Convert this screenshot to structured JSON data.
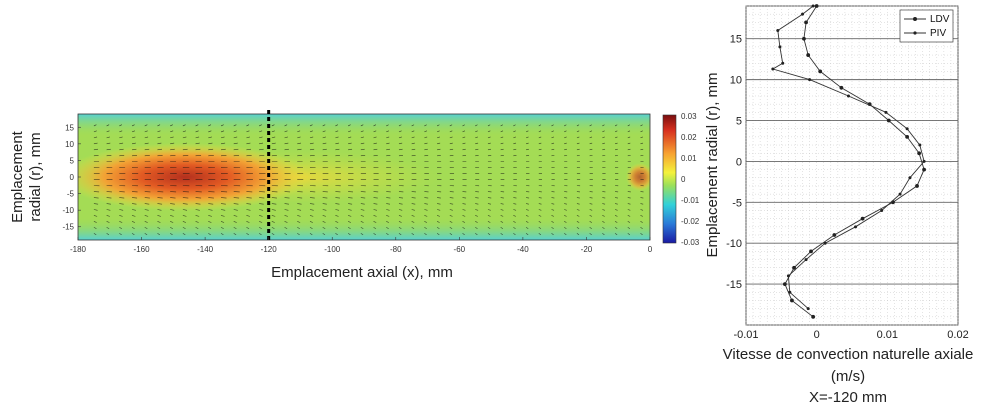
{
  "chart_data": [
    {
      "type": "heatmap",
      "title": "",
      "xlabel": "Emplacement axial (x), mm",
      "ylabel_lines": [
        "Emplacement",
        "radial (r), mm"
      ],
      "xlim": [
        -180,
        0
      ],
      "ylim": [
        -19,
        19
      ],
      "x_ticks": [
        -180,
        -160,
        -140,
        -120,
        -100,
        -80,
        -60,
        -40,
        -20,
        0
      ],
      "y_ticks": [
        15,
        10,
        5,
        0,
        -5,
        -10,
        -15
      ],
      "colorbar": {
        "range": [
          -0.03,
          0.03
        ],
        "ticks": [
          "0.03",
          "0.02",
          "0.01",
          "0",
          "-0.01",
          "-0.02",
          "-0.03"
        ]
      },
      "marker_line_x": -120,
      "colors": {
        "hot": "#b4301e",
        "warm": "#f2a335",
        "mid": "#9fdc52",
        "cool": "#4fcfe0",
        "cold": "#1c2ec8"
      }
    },
    {
      "type": "line",
      "xlabel": "Vitesse de convection naturelle axiale",
      "xlabel_unit": "(m/s)",
      "caption": "X=-120 mm",
      "ylabel": "Emplacement radial (r), mm",
      "xlim": [
        -0.01,
        0.02
      ],
      "ylim": [
        -20,
        19
      ],
      "x_ticks": [
        "-0.01",
        "0",
        "0.01",
        "0.02"
      ],
      "x_tick_values": [
        -0.01,
        0,
        0.01,
        0.02
      ],
      "y_ticks": [
        15,
        10,
        5,
        0,
        -5,
        -10,
        -15
      ],
      "legend_position": "top-right",
      "series": [
        {
          "name": "LDV",
          "r": [
            19,
            17,
            15,
            13,
            11,
            9,
            7,
            5,
            3,
            1,
            -1,
            -3,
            -5,
            -7,
            -9,
            -11,
            -13,
            -15,
            -17,
            -19
          ],
          "v": [
            0.0,
            -0.0015,
            -0.0018,
            -0.0012,
            0.0005,
            0.0035,
            0.0075,
            0.0102,
            0.0128,
            0.0145,
            0.0152,
            0.0142,
            0.0108,
            0.0065,
            0.0025,
            -0.0008,
            -0.0032,
            -0.0045,
            -0.0035,
            -0.0005
          ]
        },
        {
          "name": "PIV",
          "r": [
            19,
            18,
            16,
            14,
            12,
            11.3,
            10,
            8,
            6,
            4,
            2,
            0,
            -2,
            -4,
            -6,
            -8,
            -10,
            -12,
            -14,
            -16,
            -18
          ],
          "v": [
            -0.0005,
            -0.002,
            -0.0055,
            -0.0052,
            -0.0048,
            -0.0062,
            -0.001,
            0.0045,
            0.0098,
            0.0128,
            0.0146,
            0.0152,
            0.0132,
            0.0118,
            0.0092,
            0.0055,
            0.0012,
            -0.0015,
            -0.004,
            -0.0038,
            -0.0012
          ]
        }
      ]
    }
  ]
}
